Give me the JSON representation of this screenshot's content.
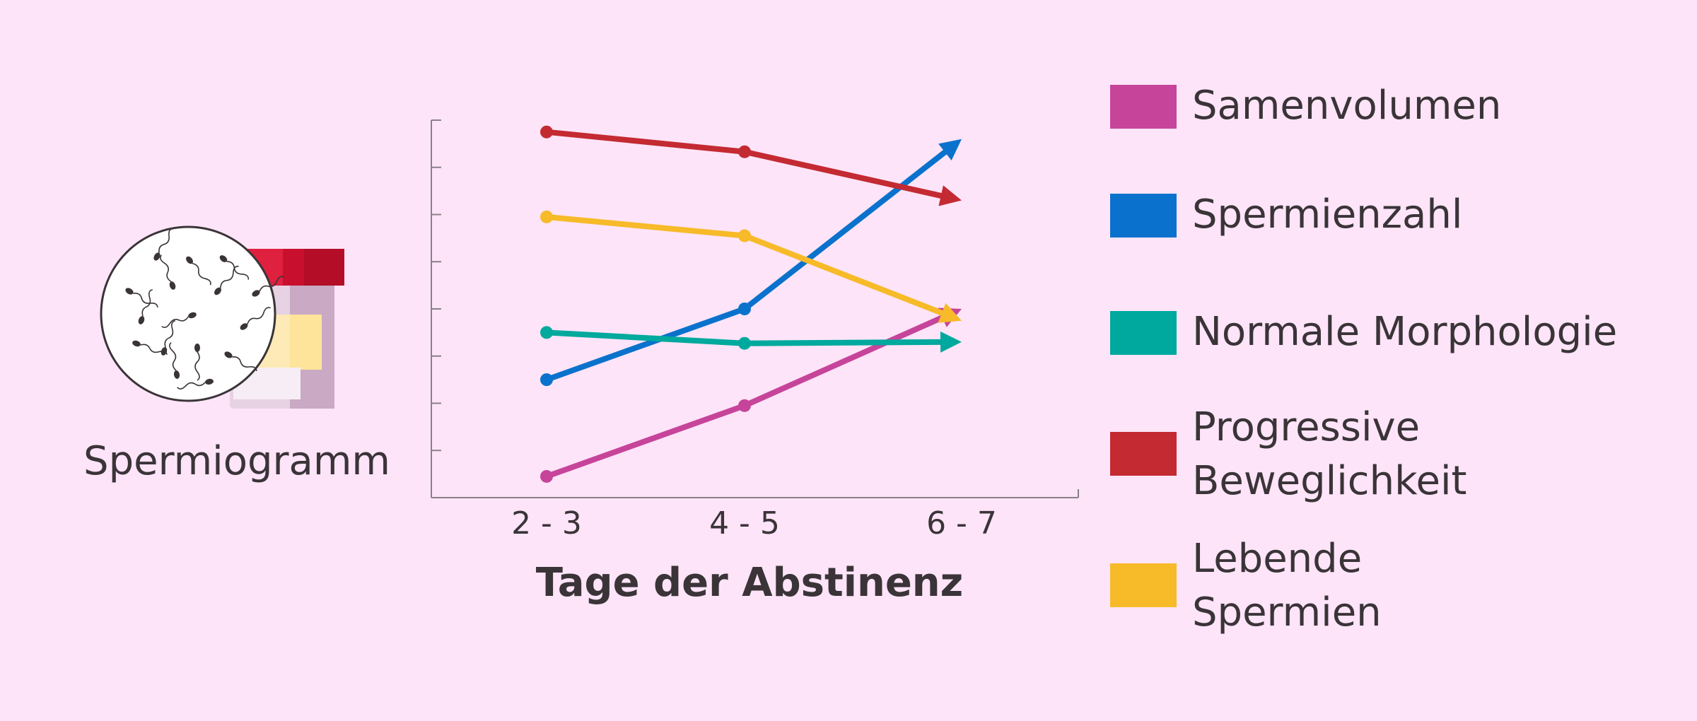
{
  "illustration": {
    "label": "Spermiogramm",
    "icons": [
      "microscope-view-icon",
      "sample-cup-icon"
    ]
  },
  "chart_data": {
    "type": "line",
    "title": "",
    "xlabel": "Tage der Abstinenz",
    "ylabel": "",
    "categories": [
      "2 - 3",
      "4 - 5",
      "6 - 7"
    ],
    "y_ticks_labeled": false,
    "ylim": [
      0,
      8
    ],
    "y_tick_count": 8,
    "grid": false,
    "legend_position": "right",
    "end_markers": "arrow",
    "series": [
      {
        "name": "Samenvolumen",
        "color": "#c6449a",
        "values": [
          0.45,
          1.95,
          4.0
        ]
      },
      {
        "name": "Spermienzahl",
        "color": "#0a72cc",
        "values": [
          2.5,
          4.0,
          7.6
        ]
      },
      {
        "name": "Normale Morphologie",
        "color": "#00a99d",
        "values": [
          3.5,
          3.27,
          3.3
        ]
      },
      {
        "name": "Progressive\nBeweglichkeit",
        "color": "#c42a32",
        "values": [
          7.75,
          7.33,
          6.3
        ]
      },
      {
        "name": "Lebende\nSpermien",
        "color": "#f7ba28",
        "values": [
          5.95,
          5.55,
          3.75
        ]
      }
    ]
  }
}
